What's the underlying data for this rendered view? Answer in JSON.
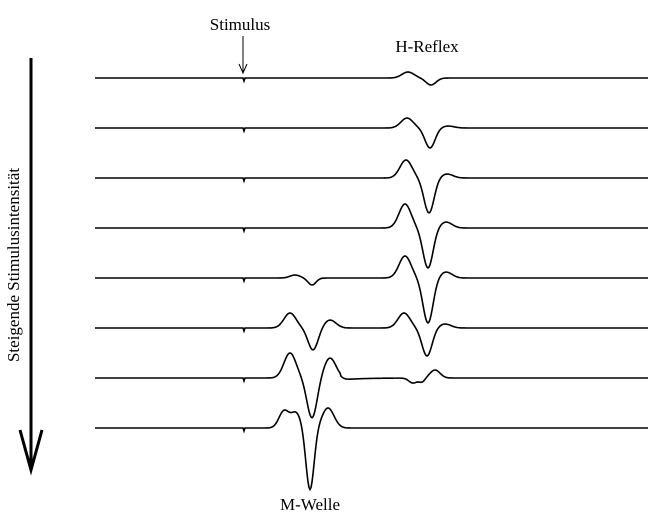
{
  "labels": {
    "stimulus": "Stimulus",
    "h_reflex": "H-Reflex",
    "m_wave": "M-Welle",
    "axis": "Steigende Stimulusintensität"
  }
}
